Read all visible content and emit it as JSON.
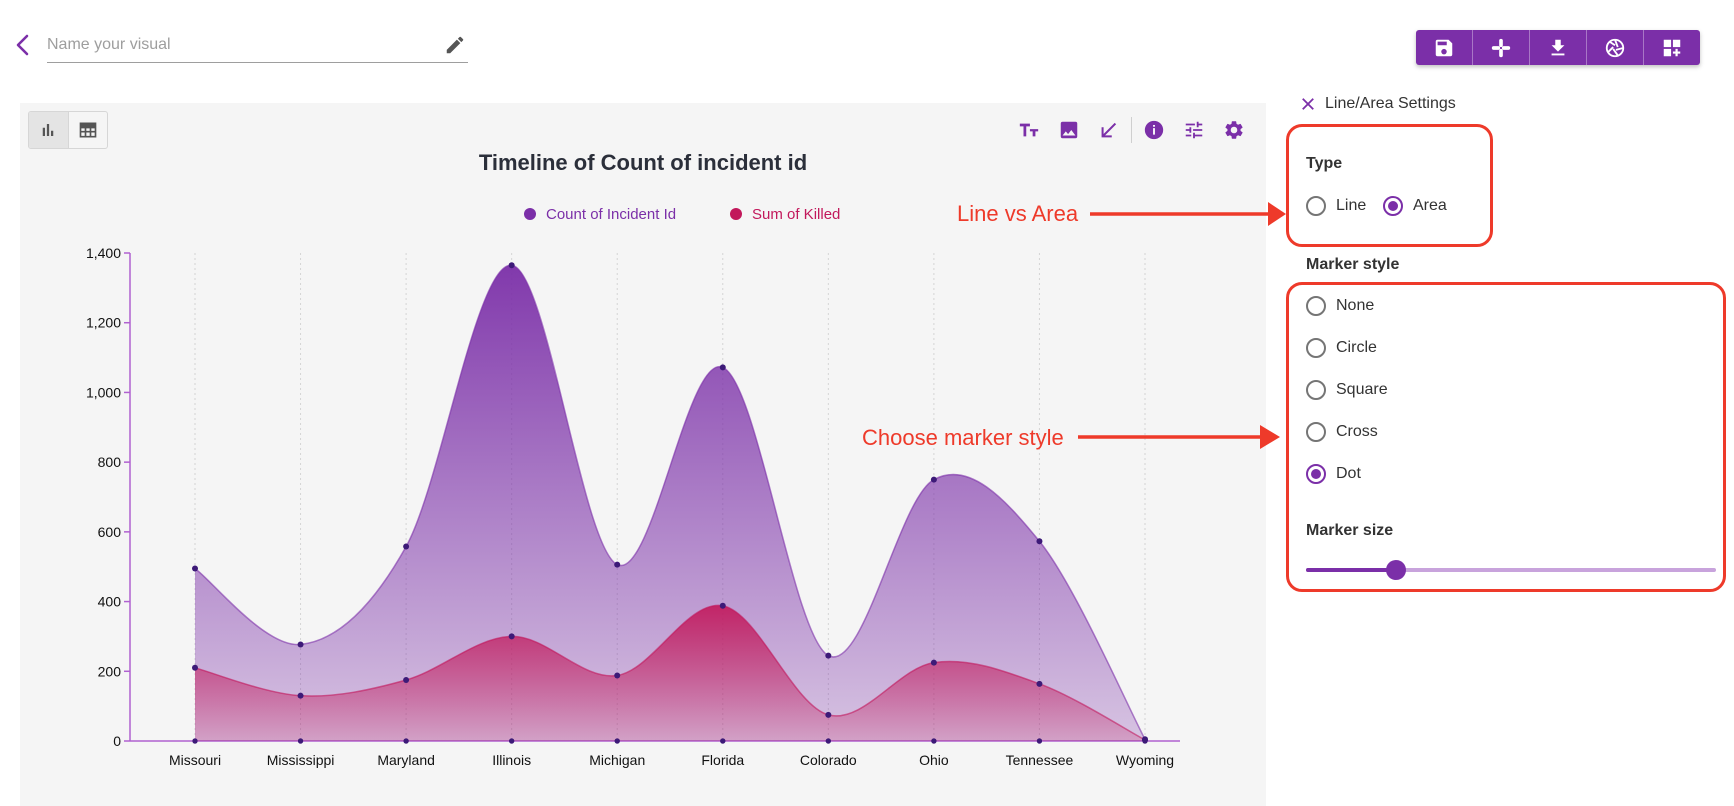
{
  "header": {
    "name_placeholder": "Name your visual",
    "icons": [
      "back-chevron-icon",
      "pencil-icon"
    ]
  },
  "toolbar": {
    "buttons": [
      "save-icon",
      "slack-icon",
      "download-icon",
      "camera-aperture-icon",
      "add-dashboard-icon"
    ]
  },
  "chart_panel": {
    "view_toggle": [
      "bar-chart-icon",
      "table-icon"
    ],
    "tools": [
      "text-size-icon",
      "image-icon",
      "resize-arrow-icon",
      "info-icon",
      "tune-icon",
      "gear-icon"
    ]
  },
  "chart_data": {
    "type": "area",
    "title": "Timeline of Count of incident id",
    "categories": [
      "Missouri",
      "Mississippi",
      "Maryland",
      "Illinois",
      "Michigan",
      "Florida",
      "Colorado",
      "Ohio",
      "Tennessee",
      "Wyoming"
    ],
    "series": [
      {
        "name": "Count of Incident Id",
        "color": "#7b2fa8",
        "values": [
          495,
          277,
          558,
          1365,
          506,
          1072,
          245,
          750,
          573,
          5
        ]
      },
      {
        "name": "Sum of Killed",
        "color": "#c2185b",
        "values": [
          210,
          130,
          175,
          300,
          188,
          388,
          75,
          225,
          164,
          3
        ]
      }
    ],
    "ylim": [
      0,
      1400
    ],
    "yticks": [
      "0",
      "200",
      "400",
      "600",
      "800",
      "1,000",
      "1,200",
      "1,400"
    ],
    "legend_position": "top-center",
    "grid": "vertical-dotted"
  },
  "settings": {
    "title": "Line/Area Settings",
    "type_label": "Type",
    "type_options": [
      "Line",
      "Area"
    ],
    "type_selected": "Area",
    "marker_style_label": "Marker style",
    "marker_options": [
      "None",
      "Circle",
      "Square",
      "Cross",
      "Dot"
    ],
    "marker_selected": "Dot",
    "marker_size_label": "Marker size",
    "marker_size_fraction": 0.22
  },
  "annotations": {
    "line_vs_area": "Line vs Area",
    "choose_marker": "Choose marker style",
    "color": "#ee3a2a"
  }
}
